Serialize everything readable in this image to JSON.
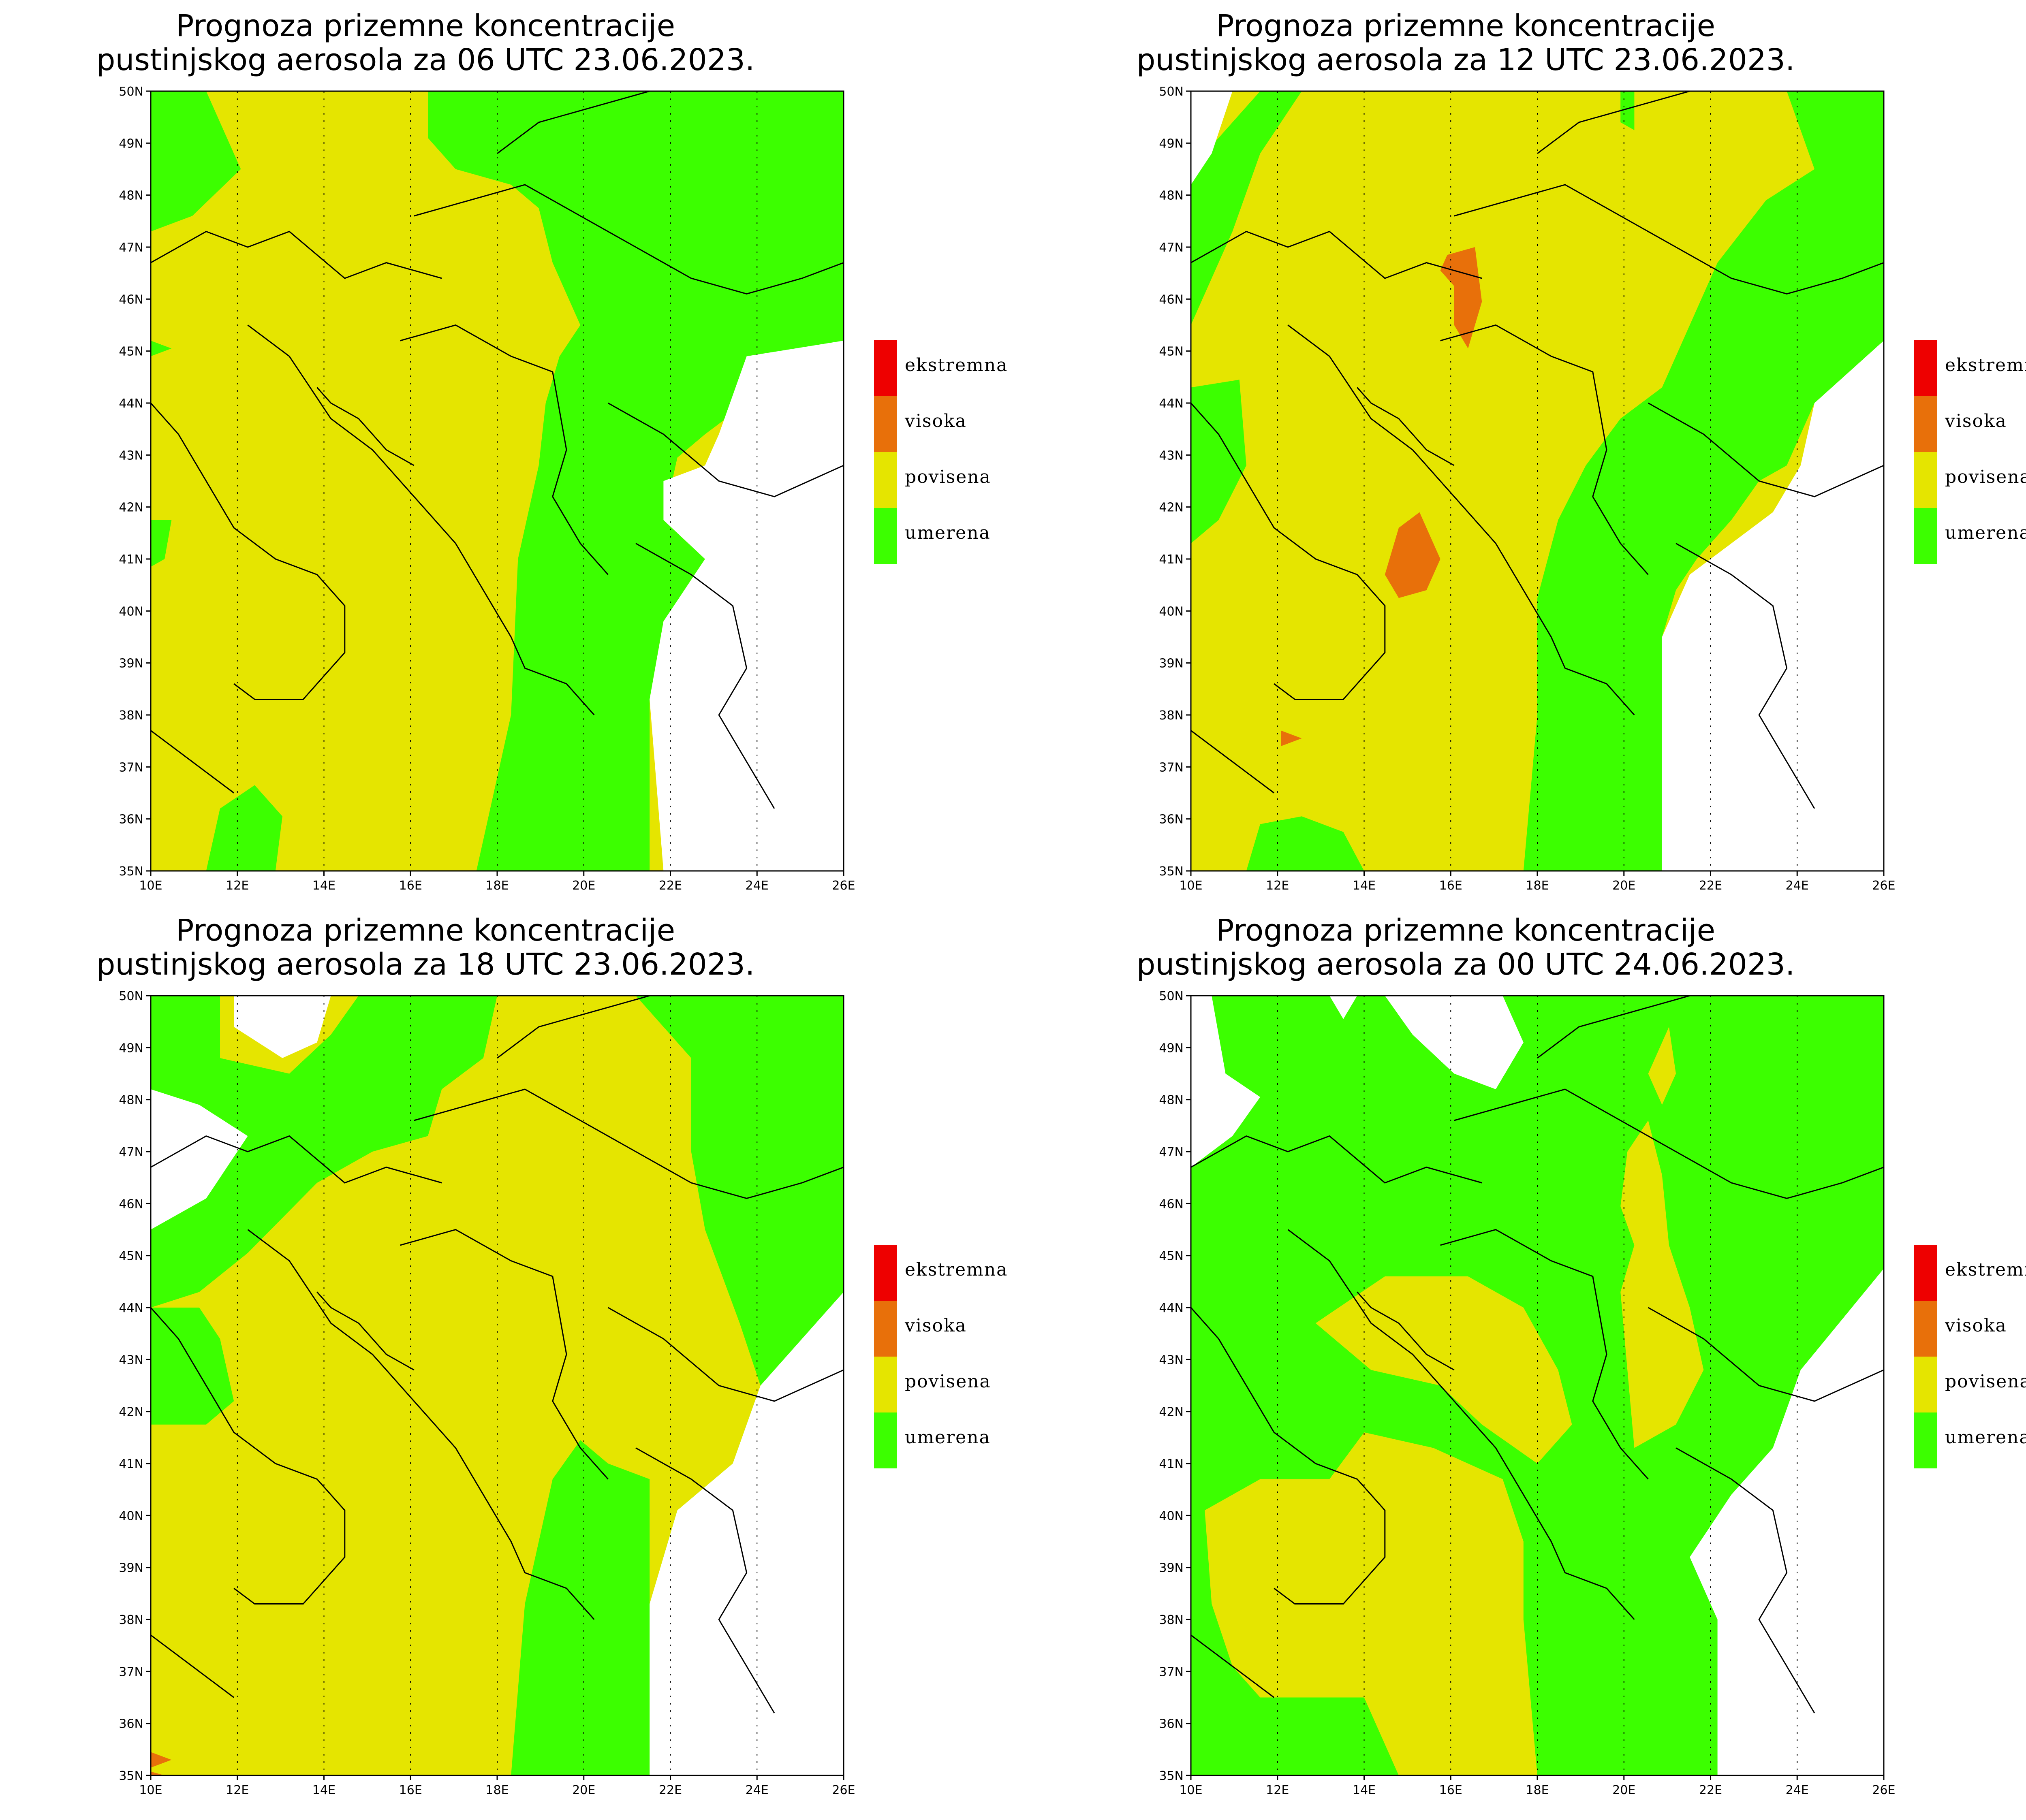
{
  "title_line1": "Prognoza prizemne koncentracije",
  "panels": [
    {
      "title_line2": "pustinjskog aerosola za 06 UTC 23.06.2023."
    },
    {
      "title_line2": "pustinjskog aerosola za 12 UTC 23.06.2023."
    },
    {
      "title_line2": "pustinjskog aerosola za 18 UTC 23.06.2023."
    },
    {
      "title_line2": "pustinjskog aerosola za 00 UTC 24.06.2023."
    }
  ],
  "lat_labels": [
    "50N",
    "49N",
    "48N",
    "47N",
    "46N",
    "45N",
    "44N",
    "43N",
    "42N",
    "41N",
    "40N",
    "39N",
    "38N",
    "37N",
    "36N",
    "35N"
  ],
  "lon_labels": [
    "10E",
    "12E",
    "14E",
    "16E",
    "18E",
    "20E",
    "22E",
    "24E",
    "26E"
  ],
  "legend": [
    {
      "label": "ekstremna",
      "color": "#ee0000"
    },
    {
      "label": "visoka",
      "color": "#e8700a"
    },
    {
      "label": "povisena",
      "color": "#e5e500"
    },
    {
      "label": "umerena",
      "color": "#3cff00"
    }
  ],
  "colors": {
    "green": "#3cff00",
    "yellow": "#e5e500",
    "orange": "#e8700a",
    "red": "#ee0000",
    "white": "#ffffff"
  }
}
